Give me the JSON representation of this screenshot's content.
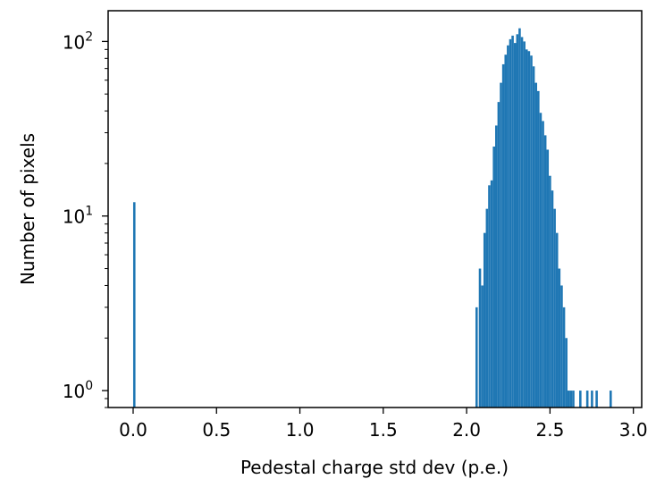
{
  "chart_data": {
    "type": "bar",
    "title": "",
    "xlabel": "Pedestal charge std dev (p.e.)",
    "ylabel": "Number of pixels",
    "xlim": [
      -0.15,
      3.05
    ],
    "ylim": [
      0.8,
      150
    ],
    "yscale": "log",
    "grid": false,
    "bar_width": 0.0139,
    "color": "#1f77b4",
    "x_ticks": [
      {
        "value": 0.0,
        "label": "0.0"
      },
      {
        "value": 0.5,
        "label": "0.5"
      },
      {
        "value": 1.0,
        "label": "1.0"
      },
      {
        "value": 1.5,
        "label": "1.5"
      },
      {
        "value": 2.0,
        "label": "2.0"
      },
      {
        "value": 2.5,
        "label": "2.5"
      },
      {
        "value": 3.0,
        "label": "3.0"
      }
    ],
    "y_ticks": [
      {
        "value": 1,
        "base": "10",
        "exp": "0"
      },
      {
        "value": 10,
        "base": "10",
        "exp": "1"
      },
      {
        "value": 100,
        "base": "10",
        "exp": "2"
      }
    ],
    "bins": [
      [
        0.0,
        12
      ],
      [
        2.053,
        3
      ],
      [
        2.073,
        5
      ],
      [
        2.087,
        4
      ],
      [
        2.101,
        8
      ],
      [
        2.115,
        11
      ],
      [
        2.129,
        15
      ],
      [
        2.143,
        16
      ],
      [
        2.157,
        25
      ],
      [
        2.171,
        33
      ],
      [
        2.185,
        45
      ],
      [
        2.199,
        58
      ],
      [
        2.213,
        74
      ],
      [
        2.227,
        84
      ],
      [
        2.241,
        95
      ],
      [
        2.255,
        103
      ],
      [
        2.269,
        108
      ],
      [
        2.283,
        98
      ],
      [
        2.297,
        110
      ],
      [
        2.311,
        119
      ],
      [
        2.325,
        106
      ],
      [
        2.339,
        100
      ],
      [
        2.353,
        90
      ],
      [
        2.367,
        88
      ],
      [
        2.381,
        83
      ],
      [
        2.395,
        72
      ],
      [
        2.409,
        58
      ],
      [
        2.423,
        52
      ],
      [
        2.437,
        39
      ],
      [
        2.451,
        35
      ],
      [
        2.465,
        29
      ],
      [
        2.479,
        24
      ],
      [
        2.493,
        17
      ],
      [
        2.507,
        14
      ],
      [
        2.521,
        11
      ],
      [
        2.535,
        8
      ],
      [
        2.549,
        5
      ],
      [
        2.563,
        4
      ],
      [
        2.577,
        3
      ],
      [
        2.591,
        2
      ],
      [
        2.605,
        1
      ],
      [
        2.619,
        1
      ],
      [
        2.633,
        1
      ],
      [
        2.675,
        1
      ],
      [
        2.717,
        1
      ],
      [
        2.745,
        1
      ],
      [
        2.773,
        1
      ],
      [
        2.857,
        1
      ]
    ]
  }
}
